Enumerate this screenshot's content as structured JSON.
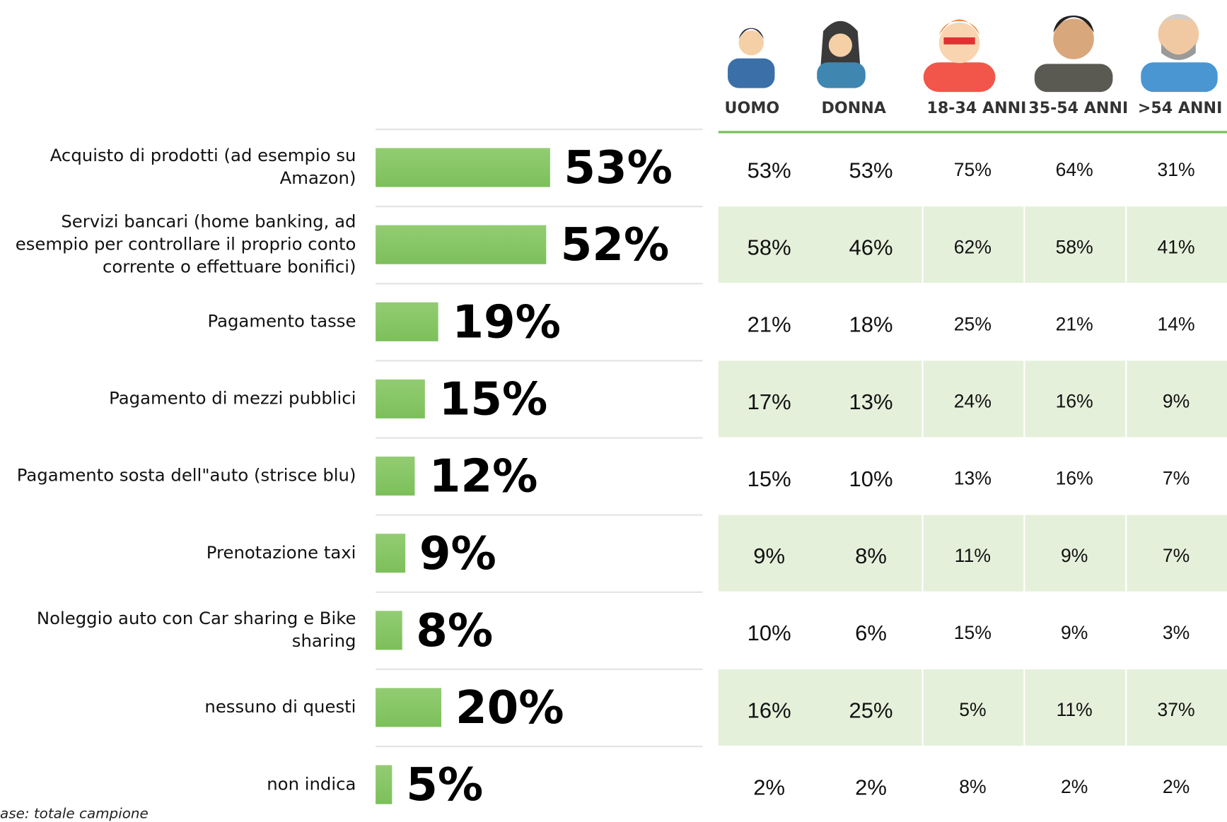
{
  "chart_data": {
    "type": "bar",
    "orientation": "horizontal",
    "color": "#7cc05a",
    "categories": [
      "Acquisto di prodotti (ad esempio su Amazon)",
      "Servizi bancari (home banking, ad esempio per controllare il proprio conto corrente o effettuare bonifici)",
      "Pagamento tasse",
      "Pagamento di mezzi pubblici",
      "Pagamento sosta dell\"auto (strisce blu)",
      "Prenotazione taxi",
      "Noleggio auto con Car sharing e Bike sharing",
      "nessuno di questi",
      "non indica"
    ],
    "values": [
      53,
      52,
      19,
      15,
      12,
      9,
      8,
      20,
      5
    ],
    "value_labels": [
      "53%",
      "52%",
      "19%",
      "15%",
      "12%",
      "9%",
      "8%",
      "20%",
      "5%"
    ]
  },
  "table": {
    "header": [
      "UOMO",
      "DONNA",
      "18-34 ANNI",
      "35-54 ANNI",
      ">54 ANNI"
    ],
    "rows": [
      [
        "53%",
        "53%",
        "75%",
        "64%",
        "31%"
      ],
      [
        "58%",
        "46%",
        "62%",
        "58%",
        "41%"
      ],
      [
        "21%",
        "18%",
        "25%",
        "21%",
        "14%"
      ],
      [
        "17%",
        "13%",
        "24%",
        "16%",
        "9%"
      ],
      [
        "15%",
        "10%",
        "13%",
        "16%",
        "7%"
      ],
      [
        "9%",
        "8%",
        "11%",
        "9%",
        "7%"
      ],
      [
        "10%",
        "6%",
        "15%",
        "9%",
        "3%"
      ],
      [
        "16%",
        "25%",
        "5%",
        "11%",
        "37%"
      ],
      [
        "2%",
        "2%",
        "8%",
        "2%",
        "2%"
      ]
    ]
  },
  "note": "ase: totale campione"
}
